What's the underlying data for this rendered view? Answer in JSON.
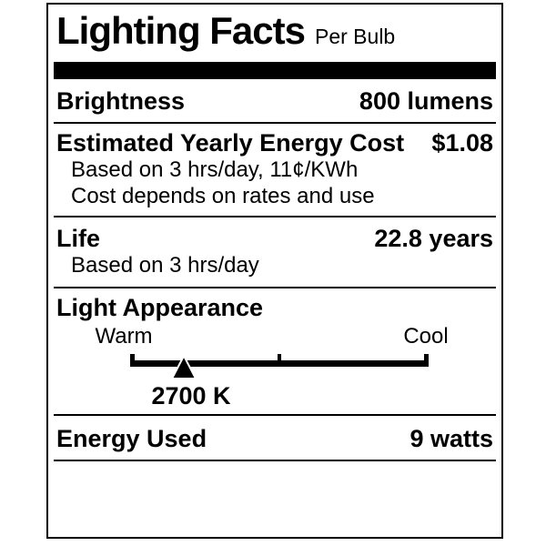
{
  "label": {
    "title": "Lighting Facts",
    "subtitle": "Per Bulb",
    "colors": {
      "ink": "#000000",
      "paper": "#ffffff"
    },
    "rows": {
      "brightness": {
        "label": "Brightness",
        "value": "800 lumens"
      },
      "energy_cost": {
        "label": "Estimated Yearly Energy Cost",
        "value": "$1.08",
        "notes": [
          "Based on 3 hrs/day, 11¢/KWh",
          "Cost depends on rates and use"
        ]
      },
      "life": {
        "label": "Life",
        "value": "22.8 years",
        "notes": [
          "Based on 3 hrs/day"
        ]
      },
      "light_appearance": {
        "heading": "Light Appearance",
        "scale": {
          "left_label": "Warm",
          "right_label": "Cool",
          "marker_label": "2700 K",
          "marker_position_percent": 18
        }
      },
      "energy_used": {
        "label": "Energy Used",
        "value": "9 watts"
      }
    }
  }
}
